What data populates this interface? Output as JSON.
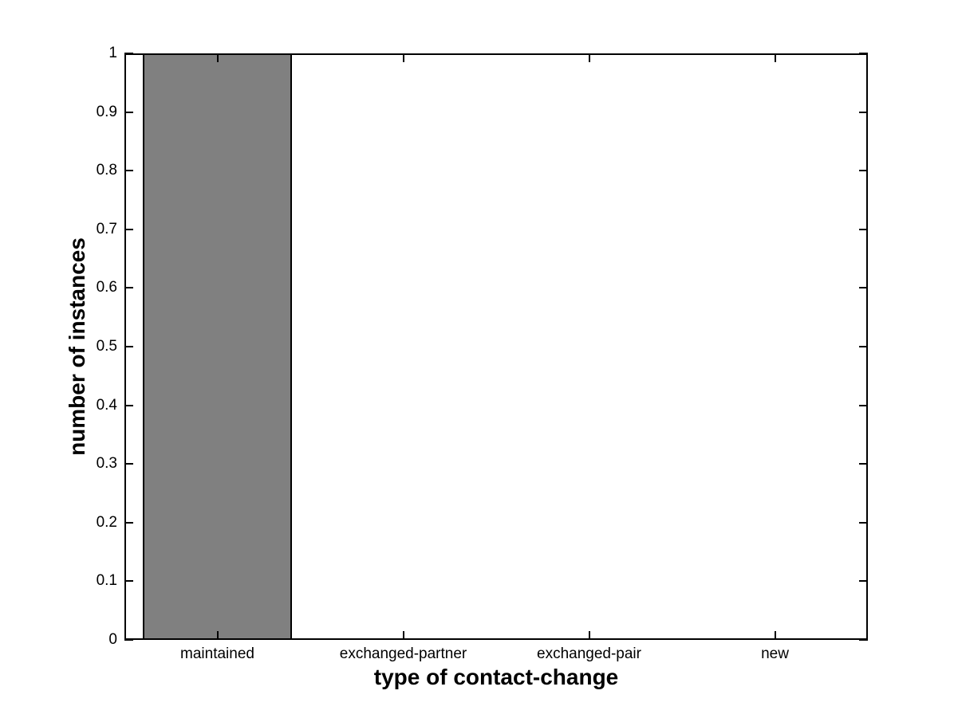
{
  "chart_data": {
    "type": "bar",
    "title": "",
    "xlabel": "type of contact-change",
    "ylabel": "number of instances",
    "categories": [
      "maintained",
      "exchanged-partner",
      "exchanged-pair",
      "new"
    ],
    "values": [
      1,
      0,
      0,
      0
    ],
    "ylim": [
      0,
      1
    ],
    "ytick_values": [
      0,
      0.1,
      0.2,
      0.3,
      0.4,
      0.5,
      0.6,
      0.7,
      0.8,
      0.9,
      1
    ],
    "ytick_labels": [
      "0",
      "0.1",
      "0.2",
      "0.3",
      "0.4",
      "0.5",
      "0.6",
      "0.7",
      "0.8",
      "0.9",
      "1"
    ],
    "bar_fill_color": "#808080",
    "bar_edge_color": "#000000",
    "axis_color": "#000000",
    "background_color": "#ffffff",
    "grid": "off",
    "legend": "none",
    "bar_width_fraction": 0.8
  }
}
